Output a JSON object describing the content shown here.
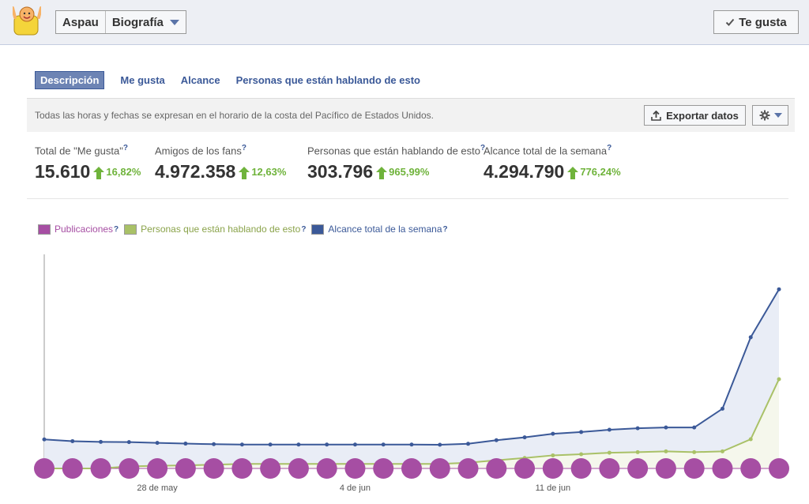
{
  "header": {
    "page_name": "Aspau",
    "section": "Biografía",
    "like_button": "Te gusta"
  },
  "tabs": [
    {
      "label": "Descripción",
      "active": true
    },
    {
      "label": "Me gusta",
      "active": false
    },
    {
      "label": "Alcance",
      "active": false
    },
    {
      "label": "Personas que están hablando de esto",
      "active": false
    }
  ],
  "infobar": {
    "note": "Todas las horas y fechas se expresan en el horario de la costa del Pacífico de Estados Unidos.",
    "export_label": "Exportar datos"
  },
  "stats": [
    {
      "label": "Total de \"Me gusta\"",
      "value": "15.610",
      "change": "16,82%"
    },
    {
      "label": "Amigos de los fans",
      "value": "4.972.358",
      "change": "12,63%"
    },
    {
      "label": "Personas que están hablando de esto",
      "value": "303.796",
      "change": "965,99%"
    },
    {
      "label": "Alcance total de la semana",
      "value": "4.294.790",
      "change": "776,24%"
    }
  ],
  "help_mark": "?",
  "legend": [
    {
      "label": "Publicaciones",
      "color": "#a64ea3"
    },
    {
      "label": "Personas que están hablando de esto",
      "color": "#a9c167"
    },
    {
      "label": "Alcance total de la semana",
      "color": "#3b5998"
    }
  ],
  "chart_data": {
    "type": "line",
    "x_tick_labels": [
      "28 de may",
      "4 de jun",
      "11 de jun"
    ],
    "x_tick_index": [
      4,
      11,
      18
    ],
    "ylim": [
      0,
      100
    ],
    "grid": false,
    "series": [
      {
        "name": "Alcance total de la semana",
        "color": "#3b5998",
        "values": [
          15.3,
          14.4,
          14.0,
          13.9,
          13.5,
          13.1,
          12.8,
          12.6,
          12.6,
          12.6,
          12.6,
          12.6,
          12.6,
          12.6,
          12.5,
          13.0,
          14.9,
          16.4,
          18.3,
          19.2,
          20.4,
          21.2,
          21.6,
          21.6,
          31.5,
          69.2,
          94.5
        ]
      },
      {
        "name": "Personas que están hablando de esto",
        "color": "#a9c167",
        "values": [
          0,
          0,
          0,
          1.1,
          1.4,
          1.6,
          2.0,
          2.4,
          2.4,
          2.4,
          2.4,
          2.4,
          2.4,
          2.4,
          2.4,
          3.0,
          4.3,
          5.5,
          6.9,
          7.5,
          8.3,
          8.6,
          9.0,
          8.6,
          9.0,
          15.4,
          47.1
        ]
      },
      {
        "name": "Publicaciones",
        "color": "#a64ea3",
        "type": "markers",
        "count": 27
      }
    ]
  }
}
